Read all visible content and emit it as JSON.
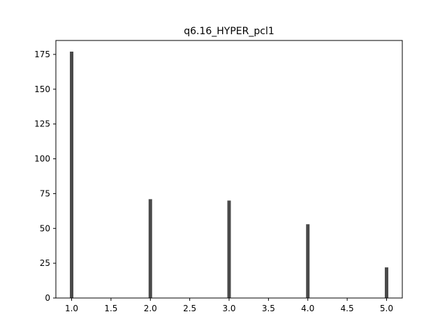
{
  "chart_data": {
    "type": "bar",
    "title": "q6.16_HYPER_pcl1",
    "xlabel": "",
    "ylabel": "",
    "x": [
      1.0,
      2.0,
      3.0,
      4.0,
      5.0
    ],
    "values": [
      177,
      71,
      70,
      53,
      22
    ],
    "xlim": [
      0.8,
      5.2
    ],
    "ylim": [
      0,
      185
    ],
    "xticks": [
      "1.0",
      "1.5",
      "2.0",
      "2.5",
      "3.0",
      "3.5",
      "4.0",
      "4.5",
      "5.0"
    ],
    "xtick_values": [
      1.0,
      1.5,
      2.0,
      2.5,
      3.0,
      3.5,
      4.0,
      4.5,
      5.0
    ],
    "yticks": [
      "0",
      "25",
      "50",
      "75",
      "100",
      "125",
      "150",
      "175"
    ],
    "ytick_values": [
      0,
      25,
      50,
      75,
      100,
      125,
      150,
      175
    ],
    "bar_color": "#4a4a4a",
    "grid": false,
    "legend": "none"
  }
}
